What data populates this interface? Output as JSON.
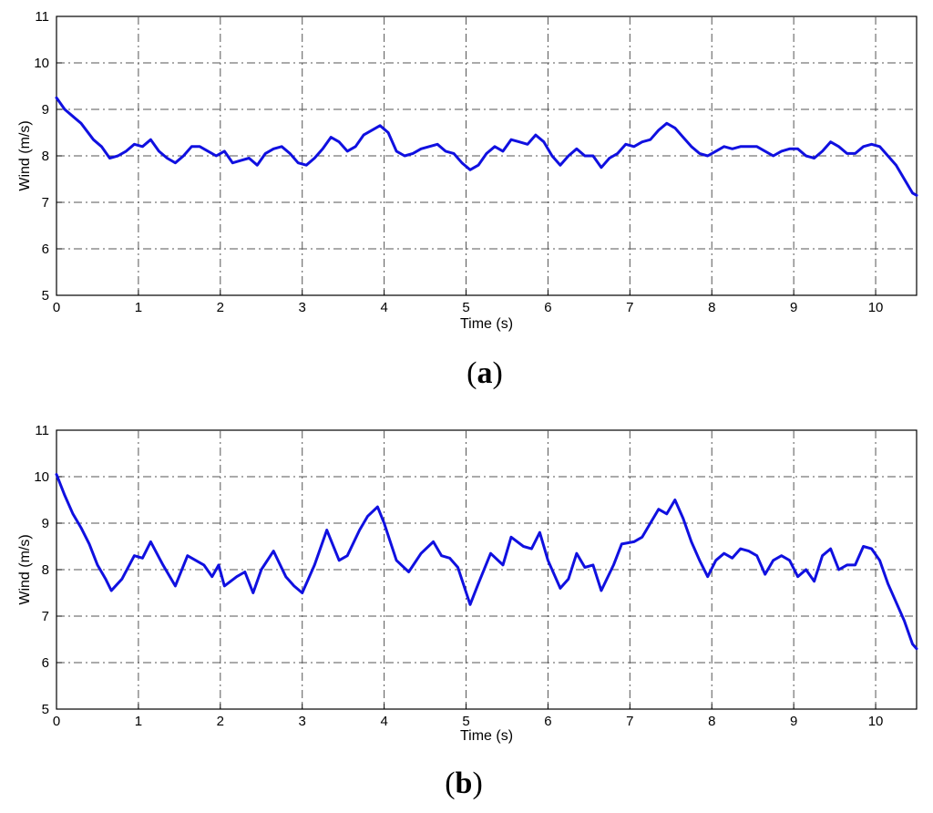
{
  "chart_data": [
    {
      "type": "line",
      "panel_label": "a",
      "xlabel": "Time (s)",
      "ylabel": "Wind (m/s)",
      "xlim": [
        0,
        10.5
      ],
      "ylim": [
        5,
        11
      ],
      "xticks": [
        0,
        1,
        2,
        3,
        4,
        5,
        6,
        7,
        8,
        9,
        10
      ],
      "yticks": [
        5,
        6,
        7,
        8,
        9,
        10,
        11
      ],
      "grid": true,
      "line_color": "#1010e0",
      "series": [
        {
          "x": [
            0,
            0.1,
            0.2,
            0.3,
            0.45,
            0.55,
            0.65,
            0.75,
            0.85,
            0.95,
            1.05,
            1.15,
            1.25,
            1.35,
            1.45,
            1.55,
            1.65,
            1.75,
            1.85,
            1.95,
            2.05,
            2.15,
            2.25,
            2.35,
            2.45,
            2.55,
            2.65,
            2.75,
            2.85,
            2.95,
            3.05,
            3.15,
            3.25,
            3.35,
            3.45,
            3.55,
            3.65,
            3.75,
            3.85,
            3.95,
            4.05,
            4.15,
            4.25,
            4.35,
            4.45,
            4.55,
            4.65,
            4.75,
            4.85,
            4.95,
            5.05,
            5.15,
            5.25,
            5.35,
            5.45,
            5.55,
            5.65,
            5.75,
            5.85,
            5.95,
            6.05,
            6.15,
            6.25,
            6.35,
            6.45,
            6.55,
            6.65,
            6.75,
            6.85,
            6.95,
            7.05,
            7.15,
            7.25,
            7.35,
            7.45,
            7.55,
            7.65,
            7.75,
            7.85,
            7.95,
            8.05,
            8.15,
            8.25,
            8.35,
            8.45,
            8.55,
            8.65,
            8.75,
            8.85,
            8.95,
            9.05,
            9.15,
            9.25,
            9.35,
            9.45,
            9.55,
            9.65,
            9.75,
            9.85,
            9.95,
            10.05,
            10.15,
            10.25,
            10.35,
            10.45,
            10.5
          ],
          "y": [
            9.25,
            9.0,
            8.85,
            8.7,
            8.35,
            8.2,
            7.95,
            8.0,
            8.1,
            8.25,
            8.2,
            8.35,
            8.1,
            7.95,
            7.85,
            8.0,
            8.2,
            8.2,
            8.1,
            8.0,
            8.1,
            7.85,
            7.9,
            7.95,
            7.8,
            8.05,
            8.15,
            8.2,
            8.05,
            7.85,
            7.8,
            7.95,
            8.15,
            8.4,
            8.3,
            8.1,
            8.2,
            8.45,
            8.55,
            8.65,
            8.5,
            8.1,
            8.0,
            8.05,
            8.15,
            8.2,
            8.25,
            8.1,
            8.05,
            7.85,
            7.7,
            7.8,
            8.05,
            8.2,
            8.1,
            8.35,
            8.3,
            8.25,
            8.45,
            8.3,
            8.0,
            7.8,
            8.0,
            8.15,
            8.0,
            8.0,
            7.75,
            7.95,
            8.05,
            8.25,
            8.2,
            8.3,
            8.35,
            8.55,
            8.7,
            8.6,
            8.4,
            8.2,
            8.05,
            8.0,
            8.1,
            8.2,
            8.15,
            8.2,
            8.2,
            8.2,
            8.1,
            8.0,
            8.1,
            8.15,
            8.15,
            8.0,
            7.95,
            8.1,
            8.3,
            8.2,
            8.05,
            8.05,
            8.2,
            8.25,
            8.2,
            8.0,
            7.8,
            7.5,
            7.2,
            7.15
          ]
        }
      ]
    },
    {
      "type": "line",
      "panel_label": "b",
      "xlabel": "Time (s)",
      "ylabel": "Wind (m/s)",
      "xlim": [
        0,
        10.5
      ],
      "ylim": [
        5,
        11
      ],
      "xticks": [
        0,
        1,
        2,
        3,
        4,
        5,
        6,
        7,
        8,
        9,
        10
      ],
      "yticks": [
        5,
        6,
        7,
        8,
        9,
        10,
        11
      ],
      "grid": true,
      "line_color": "#1010e0",
      "series": [
        {
          "x": [
            0,
            0.1,
            0.2,
            0.3,
            0.4,
            0.5,
            0.6,
            0.67,
            0.8,
            0.95,
            1.05,
            1.15,
            1.3,
            1.45,
            1.6,
            1.7,
            1.8,
            1.9,
            1.98,
            2.05,
            2.2,
            2.3,
            2.4,
            2.5,
            2.65,
            2.8,
            2.9,
            3.0,
            3.15,
            3.3,
            3.45,
            3.55,
            3.7,
            3.8,
            3.92,
            4.0,
            4.15,
            4.3,
            4.45,
            4.6,
            4.7,
            4.8,
            4.9,
            5.05,
            5.15,
            5.3,
            5.45,
            5.55,
            5.7,
            5.8,
            5.9,
            6.0,
            6.15,
            6.25,
            6.35,
            6.45,
            6.55,
            6.65,
            6.8,
            6.9,
            7.05,
            7.15,
            7.25,
            7.35,
            7.45,
            7.55,
            7.65,
            7.75,
            7.85,
            7.95,
            8.05,
            8.15,
            8.25,
            8.35,
            8.45,
            8.55,
            8.65,
            8.75,
            8.85,
            8.95,
            9.05,
            9.15,
            9.25,
            9.35,
            9.45,
            9.55,
            9.65,
            9.75,
            9.85,
            9.95,
            10.05,
            10.15,
            10.25,
            10.35,
            10.45,
            10.5
          ],
          "y": [
            10.05,
            9.6,
            9.2,
            8.9,
            8.55,
            8.1,
            7.8,
            7.55,
            7.8,
            8.3,
            8.25,
            8.6,
            8.1,
            7.65,
            8.3,
            8.2,
            8.1,
            7.85,
            8.1,
            7.65,
            7.85,
            7.95,
            7.5,
            8.0,
            8.4,
            7.85,
            7.65,
            7.5,
            8.1,
            8.85,
            8.2,
            8.3,
            8.85,
            9.15,
            9.35,
            9.0,
            8.2,
            7.95,
            8.35,
            8.6,
            8.3,
            8.25,
            8.05,
            7.25,
            7.7,
            8.35,
            8.1,
            8.7,
            8.5,
            8.45,
            8.8,
            8.2,
            7.6,
            7.8,
            8.35,
            8.05,
            8.1,
            7.55,
            8.1,
            8.55,
            8.6,
            8.7,
            9.0,
            9.3,
            9.2,
            9.5,
            9.1,
            8.6,
            8.2,
            7.85,
            8.2,
            8.35,
            8.25,
            8.45,
            8.4,
            8.3,
            7.9,
            8.2,
            8.3,
            8.2,
            7.85,
            8.0,
            7.75,
            8.3,
            8.45,
            8.0,
            8.1,
            8.1,
            8.5,
            8.45,
            8.2,
            7.7,
            7.3,
            6.9,
            6.4,
            6.3
          ]
        }
      ]
    }
  ]
}
